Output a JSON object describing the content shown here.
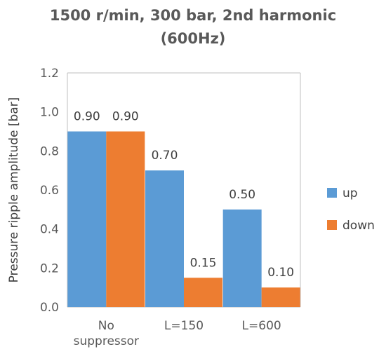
{
  "chart_data": {
    "type": "bar",
    "title_lines": [
      "1500 r/min, 300 bar, 2nd harmonic",
      "(600Hz)"
    ],
    "ylabel": "Pressure ripple amplitude [bar]",
    "xlabel": "",
    "categories": [
      [
        "No",
        "suppressor"
      ],
      [
        "L=150"
      ],
      [
        "L=600"
      ]
    ],
    "ylim": [
      0,
      1.2
    ],
    "yticks": [
      "0.0",
      "0.2",
      "0.4",
      "0.6",
      "0.8",
      "1.0",
      "1.2"
    ],
    "ytick_values": [
      0,
      0.2,
      0.4,
      0.6,
      0.8,
      1.0,
      1.2
    ],
    "grid": false,
    "legend_position": "right",
    "series": [
      {
        "name": "up",
        "color": "#5b9bd5",
        "values": [
          0.9,
          0.7,
          0.5
        ],
        "labels": [
          "0.90",
          "0.70",
          "0.50"
        ]
      },
      {
        "name": "down",
        "color": "#ed7d31",
        "values": [
          0.9,
          0.15,
          0.1
        ],
        "labels": [
          "0.90",
          "0.15",
          "0.10"
        ]
      }
    ]
  }
}
